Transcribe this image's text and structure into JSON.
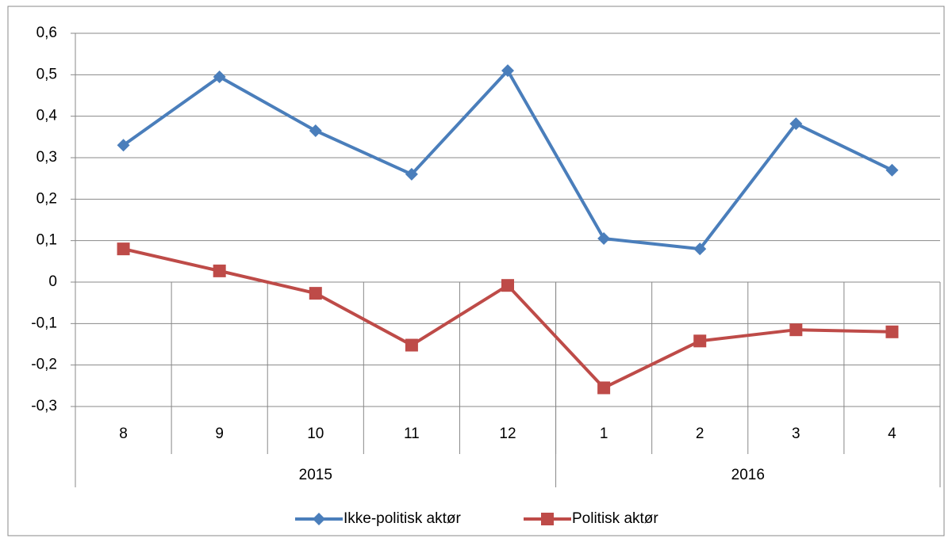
{
  "chart_data": {
    "type": "line",
    "categories": [
      "8",
      "9",
      "10",
      "11",
      "12",
      "1",
      "2",
      "3",
      "4"
    ],
    "category_groups": [
      {
        "label": "2015",
        "size": 5
      },
      {
        "label": "2016",
        "size": 4
      }
    ],
    "series": [
      {
        "name": "Ikke-politisk aktør",
        "color": "#4a7ebb",
        "marker": "diamond",
        "values": [
          0.33,
          0.495,
          0.365,
          0.26,
          0.51,
          0.105,
          0.08,
          0.382,
          0.27
        ]
      },
      {
        "name": "Politisk aktør",
        "color": "#be4b48",
        "marker": "square",
        "values": [
          0.08,
          0.027,
          -0.027,
          -0.152,
          -0.008,
          -0.255,
          -0.142,
          -0.115,
          -0.12
        ]
      }
    ],
    "ylim": [
      -0.3,
      0.6
    ],
    "yticks": [
      {
        "value": -0.3,
        "label": "-0,3"
      },
      {
        "value": -0.2,
        "label": "-0,2"
      },
      {
        "value": -0.1,
        "label": "-0,1"
      },
      0,
      {
        "value": 0.1,
        "label": "0,1"
      },
      {
        "value": 0.2,
        "label": "0,2"
      },
      {
        "value": 0.3,
        "label": "0,3"
      },
      {
        "value": 0.4,
        "label": "0,4"
      },
      {
        "value": 0.5,
        "label": "0,5"
      },
      {
        "value": 0.6,
        "label": "0,6"
      }
    ],
    "grid": true,
    "legend": "bottom"
  }
}
